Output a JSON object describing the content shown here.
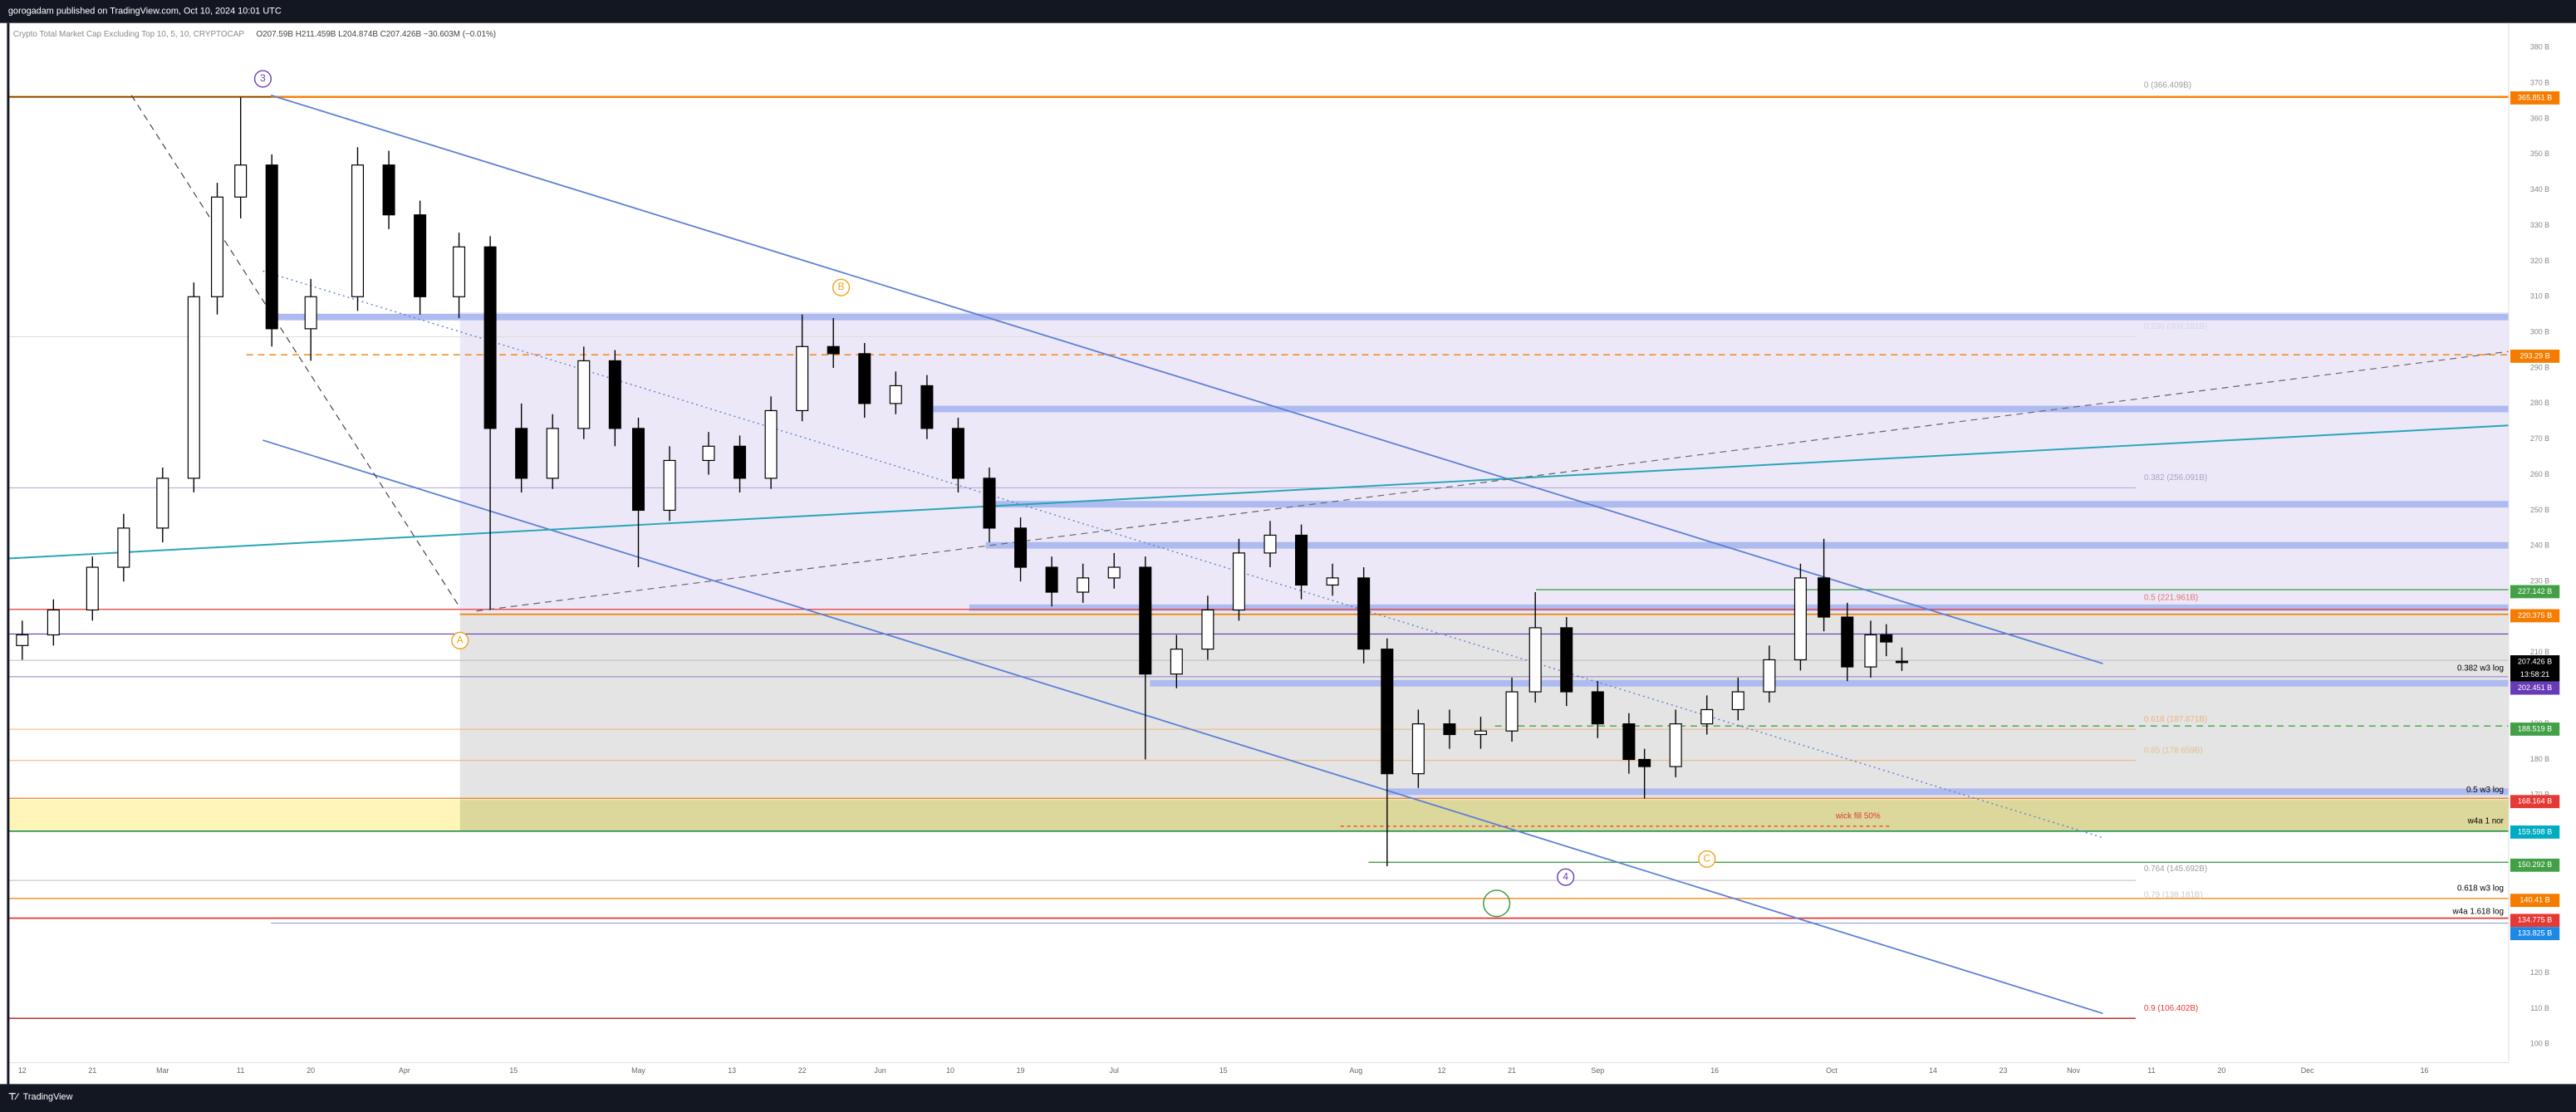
{
  "publisher_line": "gorogadam published on TradingView.com, Oct 10, 2024 10:01 UTC",
  "brand": "TradingView",
  "chart_data": {
    "type": "candlestick",
    "title": "Crypto Total Market Cap Excluding Top 10, 5, 10, CRYPTOCAP",
    "ohlc_legend": "O207.59B H211.459B L204.874B C207.426B −30.603M (−0.01%)",
    "grid": false,
    "up_color": "#ffffff",
    "down_color": "#000000",
    "wick_color": "#000000",
    "xlim": [
      -1.8,
      318.8
    ],
    "ylim": [
      94.8,
      386.9
    ],
    "xticks": [
      {
        "value": 0,
        "label": "12"
      },
      {
        "value": 9,
        "label": "21"
      },
      {
        "value": 18,
        "label": "Mar"
      },
      {
        "value": 28,
        "label": "11"
      },
      {
        "value": 37,
        "label": "20"
      },
      {
        "value": 49,
        "label": "Apr"
      },
      {
        "value": 63,
        "label": "15"
      },
      {
        "value": 79,
        "label": "May"
      },
      {
        "value": 91,
        "label": "13"
      },
      {
        "value": 100,
        "label": "22"
      },
      {
        "value": 110,
        "label": "Jun"
      },
      {
        "value": 119,
        "label": "10"
      },
      {
        "value": 128,
        "label": "19"
      },
      {
        "value": 140,
        "label": "Jul"
      },
      {
        "value": 154,
        "label": "15"
      },
      {
        "value": 171,
        "label": "Aug"
      },
      {
        "value": 182,
        "label": "12"
      },
      {
        "value": 191,
        "label": "21"
      },
      {
        "value": 202,
        "label": "Sep"
      },
      {
        "value": 217,
        "label": "16"
      },
      {
        "value": 232,
        "label": "Oct"
      },
      {
        "value": 245,
        "label": "14"
      },
      {
        "value": 254,
        "label": "23"
      },
      {
        "value": 263,
        "label": "Nov"
      },
      {
        "value": 273,
        "label": "11"
      },
      {
        "value": 282,
        "label": "20"
      },
      {
        "value": 293,
        "label": "Dec"
      },
      {
        "value": 308,
        "label": "16"
      }
    ],
    "yticks": [
      {
        "value": 100,
        "label": "100 B"
      },
      {
        "value": 110,
        "label": "110 B"
      },
      {
        "value": 120,
        "label": "120 B"
      },
      {
        "value": 130,
        "label": "130 B"
      },
      {
        "value": 140,
        "label": "140 B"
      },
      {
        "value": 150,
        "label": "150 B"
      },
      {
        "value": 160,
        "label": "160 B"
      },
      {
        "value": 170,
        "label": "170 B"
      },
      {
        "value": 180,
        "label": "180 B"
      },
      {
        "value": 190,
        "label": "190 B"
      },
      {
        "value": 200,
        "label": "200 B"
      },
      {
        "value": 210,
        "label": "210 B"
      },
      {
        "value": 220,
        "label": "220 B"
      },
      {
        "value": 230,
        "label": "230 B"
      },
      {
        "value": 240,
        "label": "240 B"
      },
      {
        "value": 250,
        "label": "250 B"
      },
      {
        "value": 260,
        "label": "260 B"
      },
      {
        "value": 270,
        "label": "270 B"
      },
      {
        "value": 280,
        "label": "280 B"
      },
      {
        "value": 290,
        "label": "290 B"
      },
      {
        "value": 300,
        "label": "300 B"
      },
      {
        "value": 310,
        "label": "310 B"
      },
      {
        "value": 320,
        "label": "320 B"
      },
      {
        "value": 330,
        "label": "330 B"
      },
      {
        "value": 340,
        "label": "340 B"
      },
      {
        "value": 350,
        "label": "350 B"
      },
      {
        "value": 360,
        "label": "360 B"
      },
      {
        "value": 370,
        "label": "370 B"
      },
      {
        "value": 380,
        "label": "380 B"
      }
    ],
    "candles": {
      "x": [
        0,
        4,
        9,
        13,
        18,
        22,
        25,
        28,
        32,
        37,
        43,
        47,
        51,
        56,
        60,
        64,
        68,
        72,
        76,
        79,
        83,
        88,
        92,
        96,
        100,
        104,
        108,
        112,
        116,
        120,
        124,
        128,
        132,
        136,
        140,
        144,
        148,
        152,
        156,
        160,
        164,
        168,
        172,
        175,
        179,
        183,
        187,
        191,
        194,
        198,
        202,
        206,
        208,
        212,
        216,
        220,
        224,
        228,
        231,
        234,
        237,
        239,
        241
      ],
      "ohlc": [
        [
          212,
          219,
          208,
          215
        ],
        [
          215,
          225,
          212,
          222
        ],
        [
          222,
          237,
          219,
          234
        ],
        [
          234,
          249,
          230,
          245
        ],
        [
          245,
          262,
          241,
          259
        ],
        [
          259,
          314,
          255,
          310
        ],
        [
          310,
          342,
          305,
          338
        ],
        [
          338,
          366,
          332,
          347
        ],
        [
          347,
          350,
          296,
          301
        ],
        [
          301,
          315,
          292,
          310
        ],
        [
          310,
          352,
          306,
          347
        ],
        [
          347,
          351,
          329,
          333
        ],
        [
          333,
          337,
          305,
          310
        ],
        [
          310,
          328,
          304,
          324
        ],
        [
          324,
          327,
          222,
          273
        ],
        [
          273,
          280,
          255,
          259
        ],
        [
          259,
          277,
          256,
          273
        ],
        [
          273,
          296,
          270,
          292
        ],
        [
          292,
          295,
          268,
          273
        ],
        [
          273,
          276,
          234,
          250
        ],
        [
          250,
          268,
          247,
          264
        ],
        [
          264,
          272,
          260,
          268
        ],
        [
          268,
          271,
          255,
          259
        ],
        [
          259,
          282,
          256,
          278
        ],
        [
          278,
          305,
          275,
          296
        ],
        [
          296,
          304,
          290,
          294
        ],
        [
          294,
          297,
          276,
          280
        ],
        [
          280,
          289,
          277,
          285
        ],
        [
          285,
          288,
          270,
          273
        ],
        [
          273,
          276,
          255,
          259
        ],
        [
          259,
          262,
          241,
          245
        ],
        [
          245,
          248,
          230,
          234
        ],
        [
          234,
          237,
          223,
          227
        ],
        [
          227,
          235,
          224,
          231
        ],
        [
          231,
          238,
          228,
          234
        ],
        [
          234,
          237,
          180,
          204
        ],
        [
          204,
          215,
          200,
          211
        ],
        [
          211,
          226,
          208,
          222
        ],
        [
          222,
          242,
          219,
          238
        ],
        [
          238,
          247,
          234,
          243
        ],
        [
          243,
          246,
          225,
          229
        ],
        [
          229,
          235,
          226,
          231
        ],
        [
          231,
          234,
          207,
          211
        ],
        [
          211,
          214,
          150,
          176
        ],
        [
          176,
          194,
          172,
          190
        ],
        [
          190,
          194,
          183,
          187
        ],
        [
          187,
          192,
          183,
          188
        ],
        [
          188,
          203,
          185,
          199
        ],
        [
          199,
          227,
          196,
          217
        ],
        [
          217,
          220,
          195,
          199
        ],
        [
          199,
          202,
          186,
          190
        ],
        [
          190,
          193,
          176,
          180
        ],
        [
          180,
          183,
          169,
          178
        ],
        [
          178,
          194,
          175,
          190
        ],
        [
          190,
          198,
          187,
          194
        ],
        [
          194,
          203,
          191,
          199
        ],
        [
          199,
          212,
          196,
          208
        ],
        [
          208,
          235,
          205,
          231
        ],
        [
          231,
          242,
          216,
          220
        ],
        [
          220,
          224,
          202,
          206
        ],
        [
          206,
          219,
          203,
          215
        ],
        [
          215,
          218,
          209,
          213
        ],
        [
          207.59,
          211.459,
          204.874,
          207.426
        ]
      ]
    },
    "price_labels": [
      {
        "value": 365.851,
        "label": "365.851 B",
        "color": "#f57c00"
      },
      {
        "value": 293.29,
        "label": "293.29 B",
        "color": "#f57c00"
      },
      {
        "value": 227.142,
        "label": "227.142 B",
        "color": "#43a047"
      },
      {
        "value": 220.375,
        "label": "220.375 B",
        "color": "#f57c00"
      },
      {
        "value": 207.426,
        "label": "207.426 B",
        "color": "#000000",
        "countdown": "13:58:21"
      },
      {
        "value": 202.451,
        "label": "202.451 B",
        "color": "#673ab7"
      },
      {
        "value": 188.519,
        "label": "188.519 B",
        "color": "#43a047"
      },
      {
        "value": 168.164,
        "label": "168.164 B",
        "color": "#e53935"
      },
      {
        "value": 159.598,
        "label": "159.598 B",
        "color": "#00acc1"
      },
      {
        "value": 150.292,
        "label": "150.292 B",
        "color": "#43a047"
      },
      {
        "value": 140.41,
        "label": "140.41 B",
        "color": "#f57c00"
      },
      {
        "value": 134.775,
        "label": "134.775 B",
        "color": "#e53935"
      },
      {
        "value": 133.825,
        "label": "133.825 B",
        "color": "#1e88e5"
      }
    ],
    "annotations": [
      {
        "text": "0 (366.409B)",
        "color": "#9e9e9e"
      },
      {
        "text": "0.236 (309.181B)",
        "color": "#d6d6e6"
      },
      {
        "text": "0.382 (256.091B)",
        "color": "#a9a3c9"
      },
      {
        "text": "0.5 (221.961B)",
        "color": "#e57373"
      },
      {
        "text": "0.618 (187.871B)",
        "color": "#f0b27a"
      },
      {
        "text": "0.65 (178.659B)",
        "color": "#e0c090"
      },
      {
        "text": "0.764 (145.692B)",
        "color": "#9e9e9e"
      },
      {
        "text": "0.79 (138.181B)",
        "color": "#d0c8c8"
      },
      {
        "text": "0.9 (106.402B)",
        "color": "#e53935"
      },
      {
        "text": "wick fill 50%",
        "color": "#e53935"
      },
      {
        "text": "0.382 w3 log",
        "color": "#000000"
      },
      {
        "text": "0.5 w3 log",
        "color": "#000000"
      },
      {
        "text": "w4a 1 nor",
        "color": "#000000"
      },
      {
        "text": "0.618 w3 log",
        "color": "#000000"
      },
      {
        "text": "w4a 1.618 log",
        "color": "#000000"
      },
      {
        "text": "3",
        "color": "#673ab7"
      },
      {
        "text": "4",
        "color": "#673ab7"
      },
      {
        "text": "B",
        "color": "#f59f1a"
      },
      {
        "text": "A",
        "color": "#f59f1a"
      },
      {
        "text": "C",
        "color": "#f59f1a"
      }
    ]
  }
}
